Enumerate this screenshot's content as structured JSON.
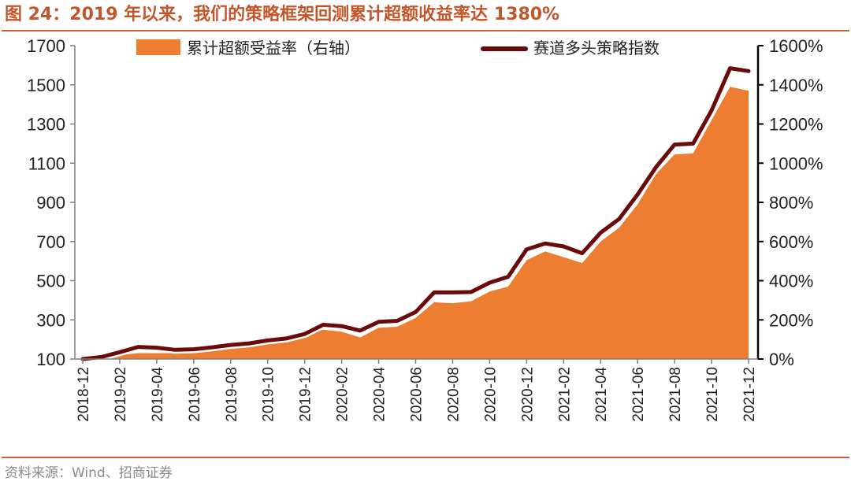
{
  "figure": {
    "title": "图 24：2019 年以来，我们的策略框架回测累计超额收益率达 1380%",
    "source": "资料来源：Wind、招商证券"
  },
  "chart_data": {
    "type": "line+area",
    "categories": [
      "2018-12",
      "2019-01",
      "2019-02",
      "2019-03",
      "2019-04",
      "2019-05",
      "2019-06",
      "2019-07",
      "2019-08",
      "2019-09",
      "2019-10",
      "2019-11",
      "2019-12",
      "2020-01",
      "2020-02",
      "2020-03",
      "2020-04",
      "2020-05",
      "2020-06",
      "2020-07",
      "2020-08",
      "2020-09",
      "2020-10",
      "2020-11",
      "2020-12",
      "2021-01",
      "2021-02",
      "2021-03",
      "2021-04",
      "2021-05",
      "2021-06",
      "2021-07",
      "2021-08",
      "2021-09",
      "2021-10",
      "2021-11",
      "2021-12"
    ],
    "x_tick_labels": [
      "2018-12",
      "2019-02",
      "2019-04",
      "2019-06",
      "2019-08",
      "2019-10",
      "2019-12",
      "2020-02",
      "2020-04",
      "2020-06",
      "2020-08",
      "2020-10",
      "2020-12",
      "2021-02",
      "2021-04",
      "2021-06",
      "2021-08",
      "2021-10",
      "2021-12"
    ],
    "left_axis": {
      "ylim": [
        100,
        1700
      ],
      "ticks": [
        "100",
        "300",
        "500",
        "700",
        "900",
        "1100",
        "1300",
        "1500",
        "1700"
      ]
    },
    "right_axis": {
      "ylim": [
        0,
        1600
      ],
      "ticks": [
        "0%",
        "200%",
        "400%",
        "600%",
        "800%",
        "1000%",
        "1200%",
        "1400%",
        "1600%"
      ]
    },
    "series": [
      {
        "name": "累计超额受益率（右轴）",
        "kind": "area",
        "axis": "right",
        "color": "#ed7d31",
        "unit": "%",
        "values": [
          0,
          5,
          20,
          30,
          30,
          30,
          30,
          45,
          60,
          70,
          85,
          100,
          120,
          150,
          140,
          110,
          160,
          165,
          210,
          290,
          285,
          295,
          345,
          370,
          505,
          550,
          520,
          490,
          600,
          670,
          790,
          945,
          1045,
          1050,
          1220,
          1390,
          1370
        ]
      },
      {
        "name": "赛道多头策略指数",
        "kind": "line",
        "axis": "left",
        "color": "#6b0a0a",
        "values": [
          100,
          110,
          135,
          162,
          158,
          147,
          150,
          160,
          172,
          180,
          195,
          205,
          228,
          275,
          268,
          245,
          290,
          295,
          340,
          440,
          440,
          442,
          490,
          520,
          660,
          690,
          675,
          640,
          745,
          815,
          940,
          1080,
          1195,
          1200,
          1370,
          1585,
          1570
        ]
      }
    ],
    "legend_position": "top",
    "grid": false
  }
}
